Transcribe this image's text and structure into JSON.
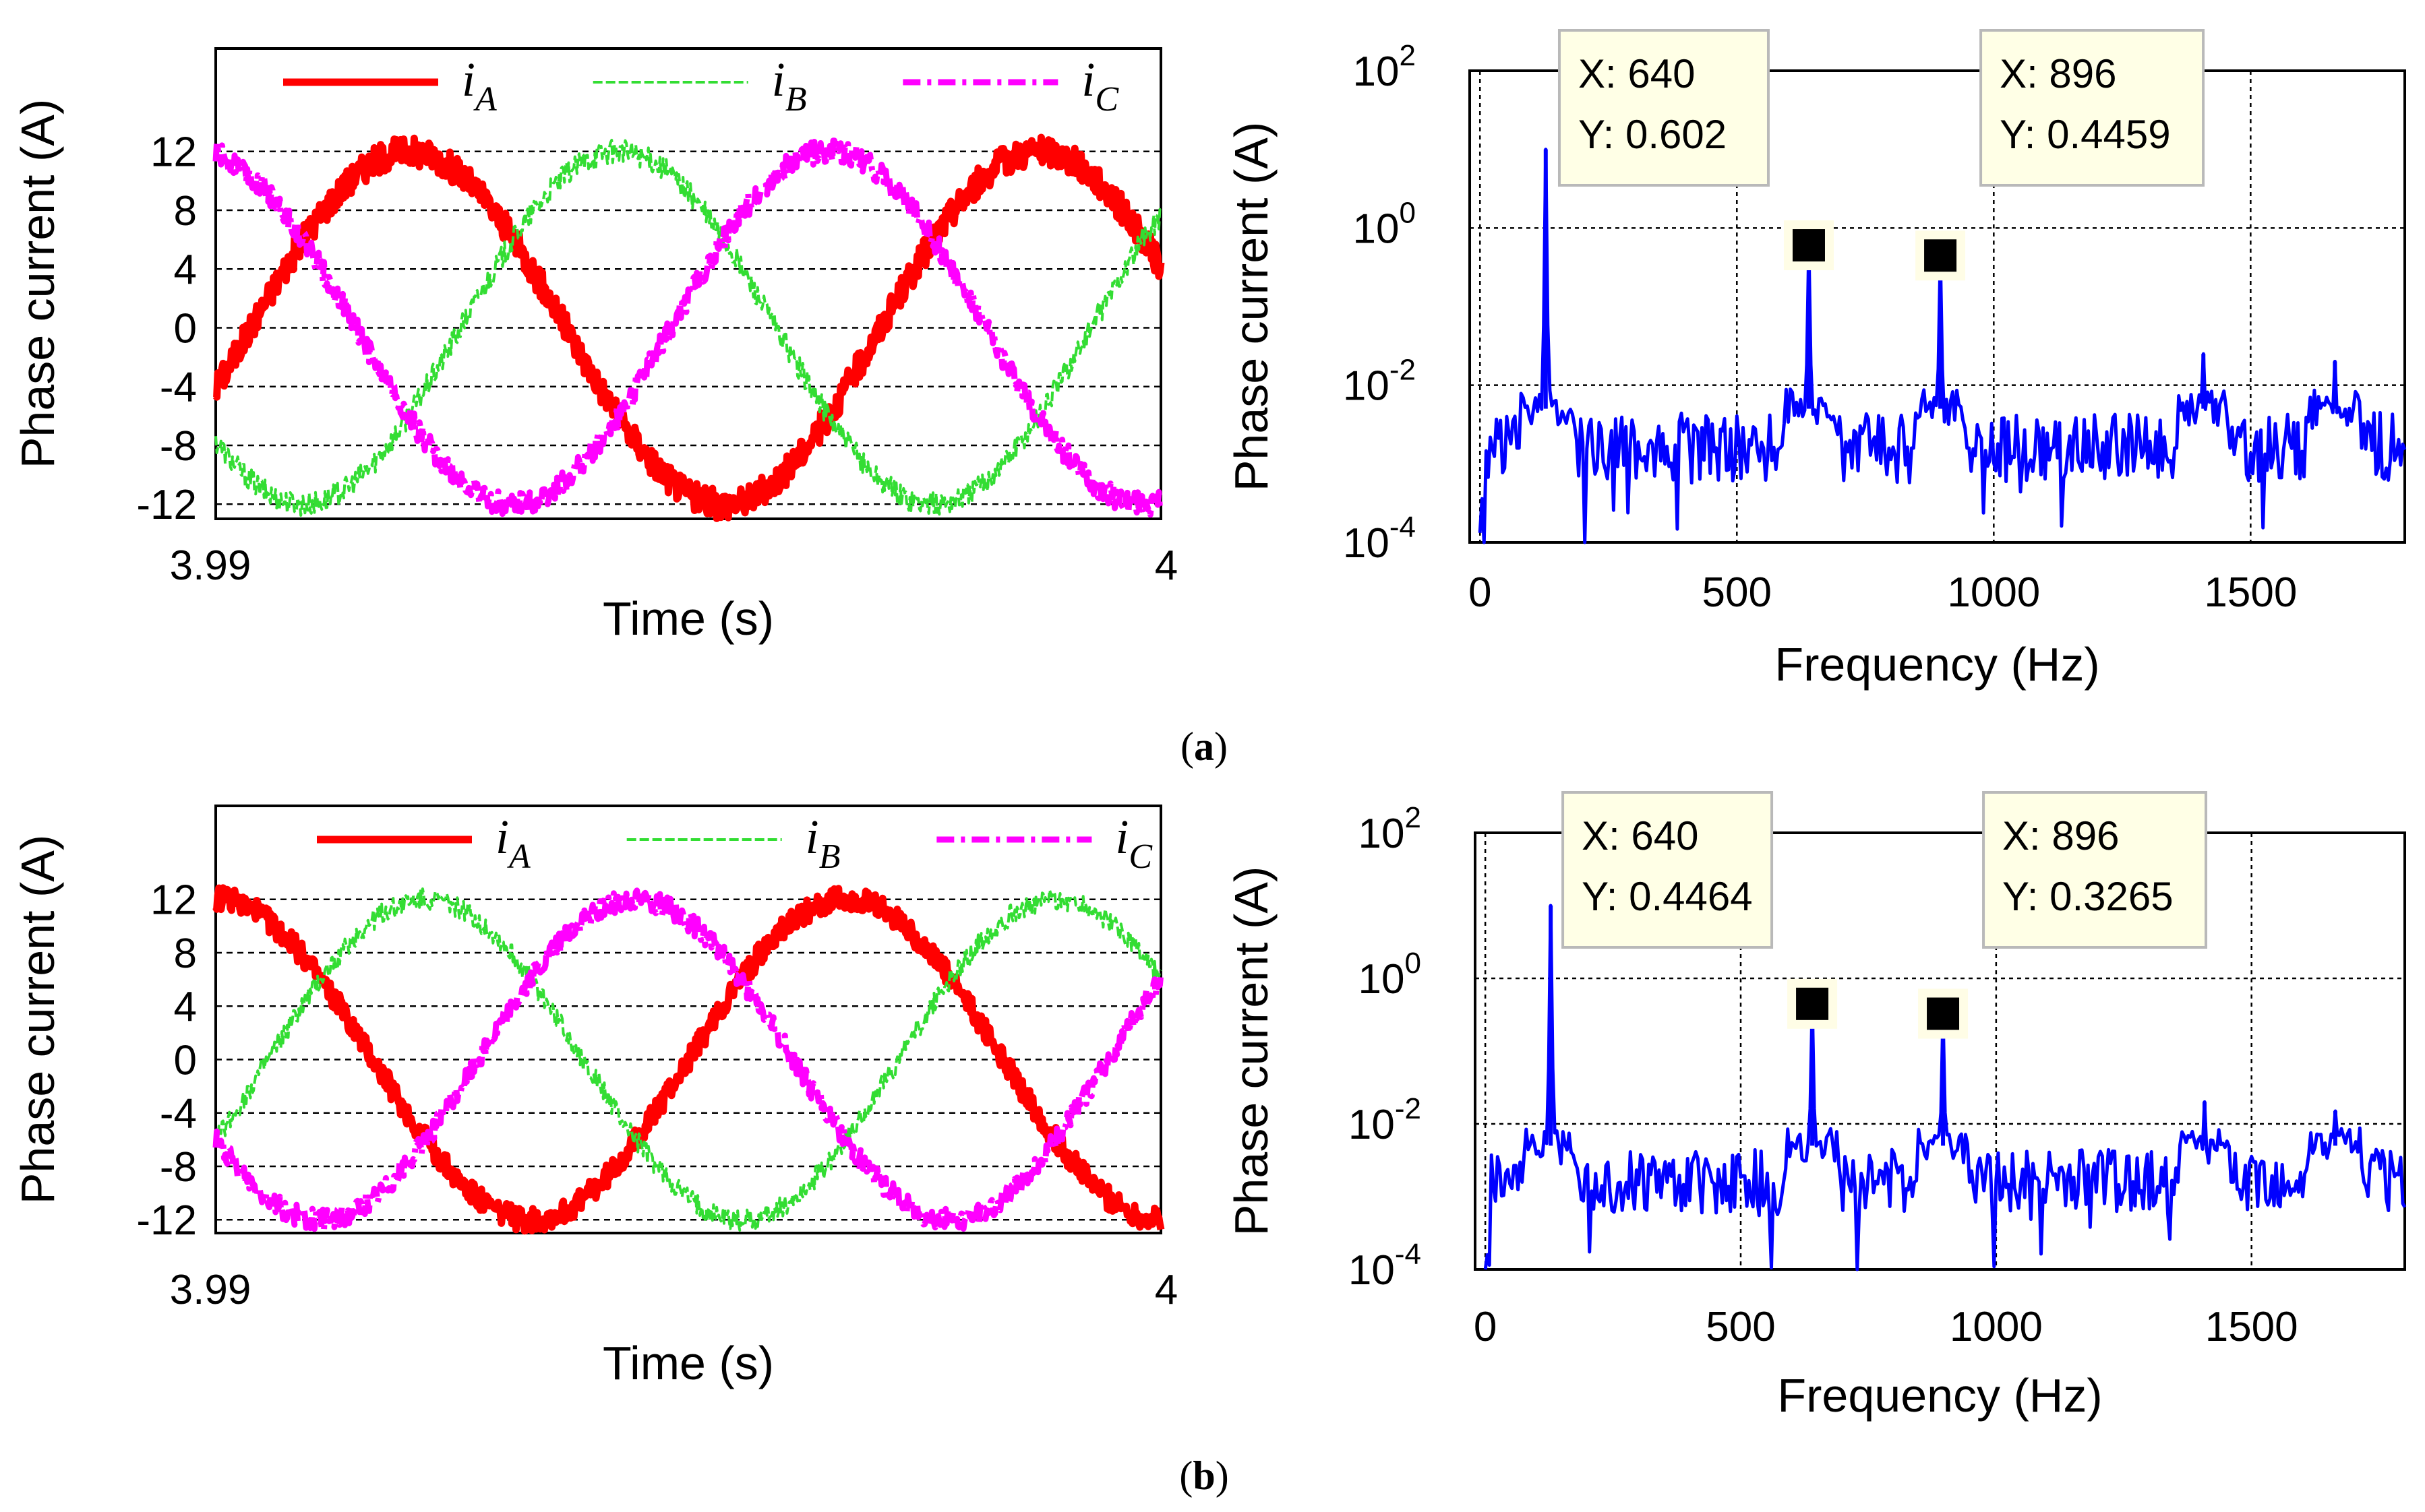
{
  "chart_data": [
    {
      "id": "a-time",
      "panel": "a",
      "type": "line",
      "title": "",
      "xlabel": "Time (s)",
      "ylabel": "Phase current (A)",
      "xlim": [
        3.99,
        4.0
      ],
      "ylim": [
        -13,
        19
      ],
      "x_tick_labels": [
        "3.99",
        "4"
      ],
      "yticks": [
        12,
        8,
        4,
        0,
        -4,
        -8,
        -12
      ],
      "y_tick_labels": [
        "12",
        "8",
        "4",
        "0",
        "-4",
        "-8",
        "-12"
      ],
      "grid": "horizontal dashed",
      "legend_position": "top",
      "series": [
        {
          "name": "i",
          "sub": "A",
          "color": "#ff0000",
          "style": "solid",
          "amplitude": 12,
          "phase_deg": -20,
          "cycles": 1.5,
          "noise": 1.0
        },
        {
          "name": "i",
          "sub": "B",
          "color": "#33dd33",
          "style": "dashed",
          "amplitude": 12,
          "phase_deg": -140,
          "cycles": 1.5,
          "noise": 0.8
        },
        {
          "name": "i",
          "sub": "C",
          "color": "#ff00ff",
          "style": "dashdot",
          "amplitude": 12,
          "phase_deg": 100,
          "cycles": 1.5,
          "noise": 0.8
        }
      ]
    },
    {
      "id": "a-spectrum",
      "panel": "a",
      "type": "line",
      "title": "",
      "xlabel": "Frequency (Hz)",
      "ylabel": "Phase current (A)",
      "xlim": [
        -20,
        1800
      ],
      "yscale": "log",
      "ylim_exp": [
        -4,
        2
      ],
      "xticks": [
        0,
        500,
        1000,
        1500
      ],
      "x_tick_labels": [
        "0",
        "500",
        "1000",
        "1500"
      ],
      "yticks_exp": [
        2,
        0,
        -2,
        -4
      ],
      "grid": "dotted",
      "series": [
        {
          "name": "spectrum",
          "color": "#0000ff",
          "peaks": [
            {
              "f": 128,
              "v": 10.0
            },
            {
              "f": 640,
              "v": 0.602
            },
            {
              "f": 896,
              "v": 0.4459
            },
            {
              "f": 1408,
              "v": 0.025
            },
            {
              "f": 1664,
              "v": 0.02
            }
          ]
        }
      ],
      "datatips": [
        {
          "x_label": "X: 640",
          "y_label": "Y: 0.602",
          "freq": 640,
          "value": 0.602
        },
        {
          "x_label": "X: 896",
          "y_label": "Y: 0.4459",
          "freq": 896,
          "value": 0.4459
        }
      ]
    },
    {
      "id": "b-time",
      "panel": "b",
      "type": "line",
      "title": "",
      "xlabel": "Time (s)",
      "ylabel": "Phase current (A)",
      "xlim": [
        3.99,
        4.0
      ],
      "ylim": [
        -13,
        19
      ],
      "x_tick_labels": [
        "3.99",
        "4"
      ],
      "yticks": [
        12,
        8,
        4,
        0,
        -4,
        -8,
        -12
      ],
      "y_tick_labels": [
        "12",
        "8",
        "4",
        "0",
        "-4",
        "-8",
        "-12"
      ],
      "grid": "horizontal dashed",
      "legend_position": "top",
      "series": [
        {
          "name": "i",
          "sub": "A",
          "color": "#ff0000",
          "style": "solid",
          "amplitude": 12,
          "phase_deg": 90,
          "cycles": 1.5,
          "noise": 0.9
        },
        {
          "name": "i",
          "sub": "B",
          "color": "#33dd33",
          "style": "dashed",
          "amplitude": 12,
          "phase_deg": -30,
          "cycles": 1.5,
          "noise": 0.8
        },
        {
          "name": "i",
          "sub": "C",
          "color": "#ff00ff",
          "style": "dashdot",
          "amplitude": 12,
          "phase_deg": -150,
          "cycles": 1.5,
          "noise": 0.8
        }
      ]
    },
    {
      "id": "b-spectrum",
      "panel": "b",
      "type": "line",
      "title": "",
      "xlabel": "Frequency (Hz)",
      "ylabel": "Phase current (A)",
      "xlim": [
        -20,
        1800
      ],
      "yscale": "log",
      "ylim_exp": [
        -4,
        2
      ],
      "xticks": [
        0,
        500,
        1000,
        1500
      ],
      "x_tick_labels": [
        "0",
        "500",
        "1000",
        "1500"
      ],
      "yticks_exp": [
        2,
        0,
        -2,
        -4
      ],
      "grid": "dotted",
      "series": [
        {
          "name": "spectrum",
          "color": "#0000ff",
          "peaks": [
            {
              "f": 128,
              "v": 10.0
            },
            {
              "f": 640,
              "v": 0.4464
            },
            {
              "f": 896,
              "v": 0.3265
            },
            {
              "f": 1408,
              "v": 0.02
            },
            {
              "f": 1664,
              "v": 0.015
            }
          ]
        }
      ],
      "datatips": [
        {
          "x_label": "X: 640",
          "y_label": "Y: 0.4464",
          "freq": 640,
          "value": 0.4464
        },
        {
          "x_label": "X: 896",
          "y_label": "Y: 0.3265",
          "freq": 896,
          "value": 0.3265
        }
      ]
    }
  ],
  "captions": {
    "a": {
      "open": "(",
      "letter": "a",
      "close": ")"
    },
    "b": {
      "open": "(",
      "letter": "b",
      "close": ")"
    }
  },
  "log_base_label": "10"
}
